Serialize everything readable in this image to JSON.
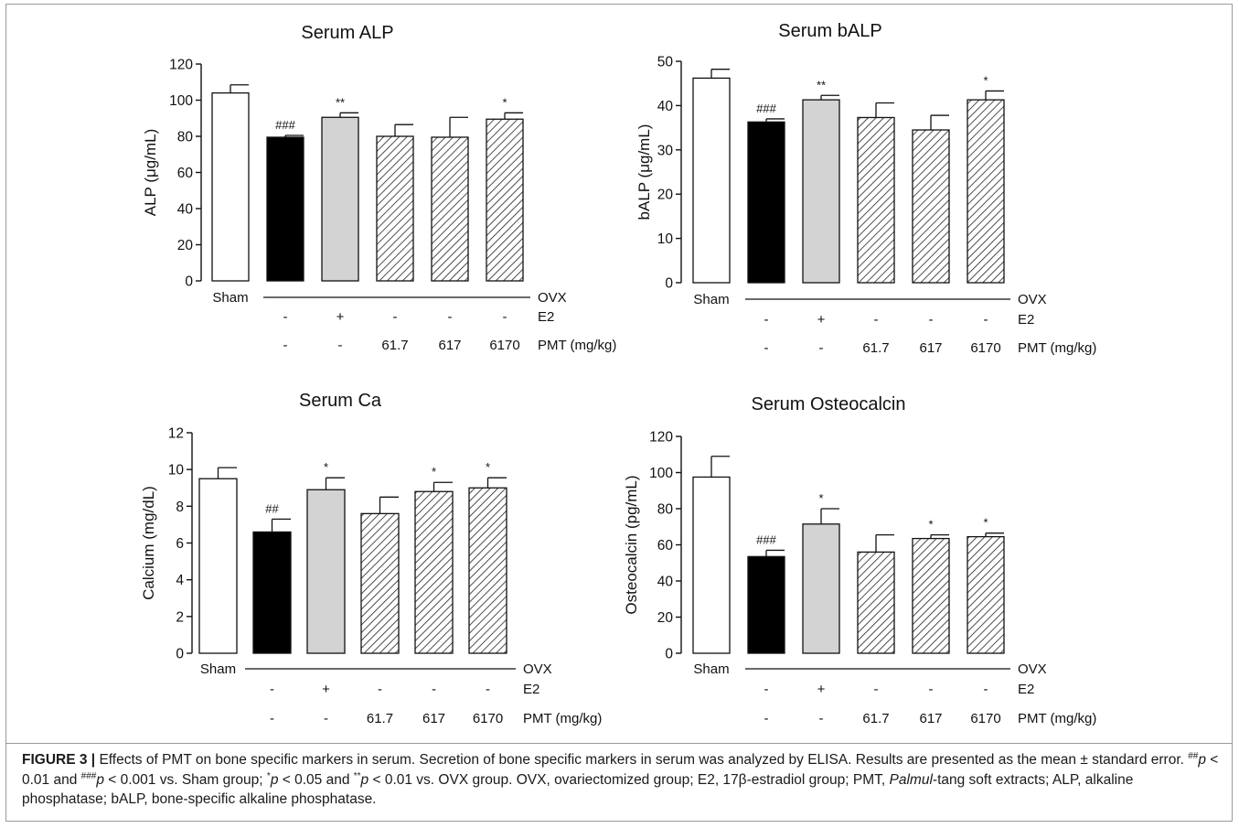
{
  "chart_data": [
    {
      "type": "bar",
      "title": "Serum ALP",
      "ylabel": "ALP (μg/mL)",
      "ylim": [
        0,
        120
      ],
      "yticks": [
        "0",
        "20",
        "40",
        "60",
        "80",
        "100",
        "120"
      ],
      "bars": [
        {
          "value": 104,
          "err": 4.5,
          "fill": "white",
          "sig": ""
        },
        {
          "value": 79.5,
          "err": 1,
          "fill": "black",
          "sig": "###"
        },
        {
          "value": 90.5,
          "err": 2.5,
          "fill": "gray",
          "sig": "**"
        },
        {
          "value": 80,
          "err": 6.5,
          "fill": "hatch",
          "sig": ""
        },
        {
          "value": 79.5,
          "err": 11,
          "fill": "hatch",
          "sig": ""
        },
        {
          "value": 89.5,
          "err": 3.5,
          "fill": "hatch",
          "sig": "*"
        }
      ],
      "groups": {
        "sham": "Sham",
        "ovx": "OVX",
        "e2_label": "E2",
        "e2": [
          "-",
          "+",
          "-",
          "-",
          "-"
        ],
        "pmt_label": "PMT (mg/kg)",
        "pmt": [
          "-",
          "-",
          "61.7",
          "617",
          "6170"
        ]
      }
    },
    {
      "type": "bar",
      "title": "Serum bALP",
      "ylabel": "bALP (μg/mL)",
      "ylim": [
        0,
        50
      ],
      "yticks": [
        "0",
        "10",
        "20",
        "30",
        "40",
        "50"
      ],
      "bars": [
        {
          "value": 46.2,
          "err": 2,
          "fill": "white",
          "sig": ""
        },
        {
          "value": 36.3,
          "err": 0.7,
          "fill": "black",
          "sig": "###"
        },
        {
          "value": 41.3,
          "err": 1,
          "fill": "gray",
          "sig": "**"
        },
        {
          "value": 37.3,
          "err": 3.3,
          "fill": "hatch",
          "sig": ""
        },
        {
          "value": 34.5,
          "err": 3.3,
          "fill": "hatch",
          "sig": ""
        },
        {
          "value": 41.3,
          "err": 2,
          "fill": "hatch",
          "sig": "*"
        }
      ],
      "groups": {
        "sham": "Sham",
        "ovx": "OVX",
        "e2_label": "E2",
        "e2": [
          "-",
          "+",
          "-",
          "-",
          "-"
        ],
        "pmt_label": "PMT (mg/kg)",
        "pmt": [
          "-",
          "-",
          "61.7",
          "617",
          "6170"
        ]
      }
    },
    {
      "type": "bar",
      "title": "Serum Ca",
      "ylabel": "Calcium (mg/dL)",
      "ylim": [
        0,
        12
      ],
      "yticks": [
        "0",
        "2",
        "4",
        "6",
        "8",
        "10",
        "12"
      ],
      "bars": [
        {
          "value": 9.5,
          "err": 0.6,
          "fill": "white",
          "sig": ""
        },
        {
          "value": 6.6,
          "err": 0.7,
          "fill": "black",
          "sig": "##"
        },
        {
          "value": 8.9,
          "err": 0.65,
          "fill": "gray",
          "sig": "*"
        },
        {
          "value": 7.6,
          "err": 0.9,
          "fill": "hatch",
          "sig": ""
        },
        {
          "value": 8.8,
          "err": 0.5,
          "fill": "hatch",
          "sig": "*"
        },
        {
          "value": 9.0,
          "err": 0.55,
          "fill": "hatch",
          "sig": "*"
        }
      ],
      "groups": {
        "sham": "Sham",
        "ovx": "OVX",
        "e2_label": "E2",
        "e2": [
          "-",
          "+",
          "-",
          "-",
          "-"
        ],
        "pmt_label": "PMT (mg/kg)",
        "pmt": [
          "-",
          "-",
          "61.7",
          "617",
          "6170"
        ]
      }
    },
    {
      "type": "bar",
      "title": "Serum Osteocalcin",
      "ylabel": "Osteocalcin (pg/mL)",
      "ylim": [
        0,
        120
      ],
      "yticks": [
        "0",
        "20",
        "40",
        "60",
        "80",
        "100",
        "120"
      ],
      "bars": [
        {
          "value": 97.5,
          "err": 11.5,
          "fill": "white",
          "sig": ""
        },
        {
          "value": 53.5,
          "err": 3.5,
          "fill": "black",
          "sig": "###"
        },
        {
          "value": 71.5,
          "err": 8.5,
          "fill": "gray",
          "sig": "*"
        },
        {
          "value": 56,
          "err": 9.5,
          "fill": "hatch",
          "sig": ""
        },
        {
          "value": 63.5,
          "err": 2,
          "fill": "hatch",
          "sig": "*"
        },
        {
          "value": 64.5,
          "err": 2,
          "fill": "hatch",
          "sig": "*"
        }
      ],
      "groups": {
        "sham": "Sham",
        "ovx": "OVX",
        "e2_label": "E2",
        "e2": [
          "-",
          "+",
          "-",
          "-",
          "-"
        ],
        "pmt_label": "PMT (mg/kg)",
        "pmt": [
          "-",
          "-",
          "61.7",
          "617",
          "6170"
        ]
      }
    }
  ],
  "caption": {
    "label": "FIGURE 3 |",
    "s1": " Effects of PMT on bone specific markers in serum. Secretion of bone specific markers in serum was analyzed by ELISA. Results are presented as the mean ± standard error. ",
    "sup1": "##",
    "p1": "p",
    "s2": " < 0.01 and ",
    "sup2": "###",
    "p2": "p",
    "s3": " < 0.001 vs. Sham group; ",
    "sup3": "*",
    "p3": "p",
    "s4": " < 0.05 and ",
    "sup4": "**",
    "p4": "p",
    "s5": " < 0.01 vs. OVX group. OVX, ovariectomized group; E2, 17β-estradiol group; PMT, ",
    "palmul": "Palmul",
    "s6": "-tang soft extracts; ALP, alkaline phosphatase; bALP, bone-specific alkaline phosphatase."
  },
  "colors": {
    "frame": "#9a9a9a",
    "black_bar": "#000000",
    "gray_bar": "#d3d3d3",
    "white_bar": "#ffffff",
    "hatch": "#222222"
  }
}
